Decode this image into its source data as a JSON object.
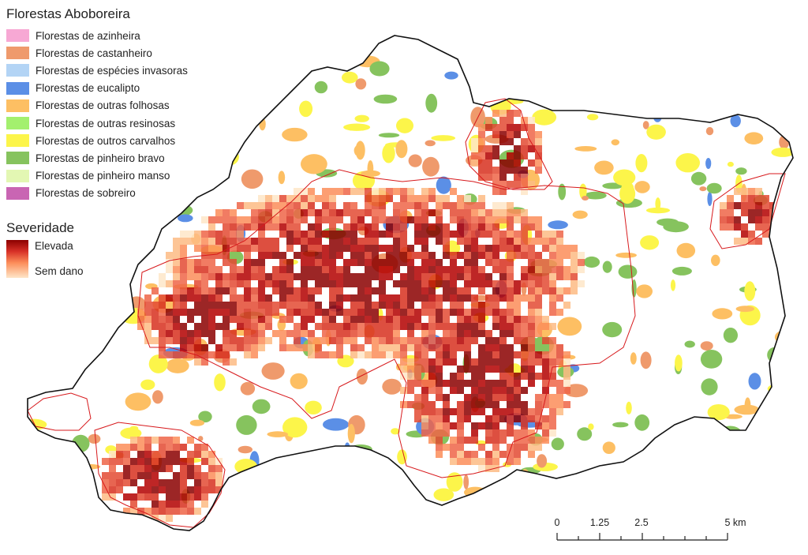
{
  "legend": {
    "title": "Florestas Aboboreira",
    "items": [
      {
        "label": "Florestas de azinheira",
        "color": "#f7a8d4"
      },
      {
        "label": "Florestas de castanheiro",
        "color": "#ef9a6c"
      },
      {
        "label": "Florestas de espécies invasoras",
        "color": "#b3d4f5"
      },
      {
        "label": "Florestas de eucalipto",
        "color": "#5b8fe6"
      },
      {
        "label": "Florestas de outras folhosas",
        "color": "#fdbf63"
      },
      {
        "label": "Florestas de outras resinosas",
        "color": "#a3f06e"
      },
      {
        "label": "Florestas de outros carvalhos",
        "color": "#fcf54a"
      },
      {
        "label": "Florestas de pinheiro bravo",
        "color": "#86c35e"
      },
      {
        "label": "Florestas de pinheiro manso",
        "color": "#e3f7b3"
      },
      {
        "label": "Florestas de sobreiro",
        "color": "#c965b3"
      }
    ]
  },
  "severity": {
    "title": "Severidade",
    "high_label": "Elevada",
    "low_label": "Sem dano",
    "colors": {
      "high": "#8b0000",
      "mid": "#e34a33",
      "low": "#fee6c8"
    }
  },
  "scale": {
    "labels": [
      "0",
      "1.25",
      "2.5",
      "5 km"
    ]
  },
  "colors": {
    "boundary": "#111111",
    "burn_outline": "#d7191c"
  }
}
